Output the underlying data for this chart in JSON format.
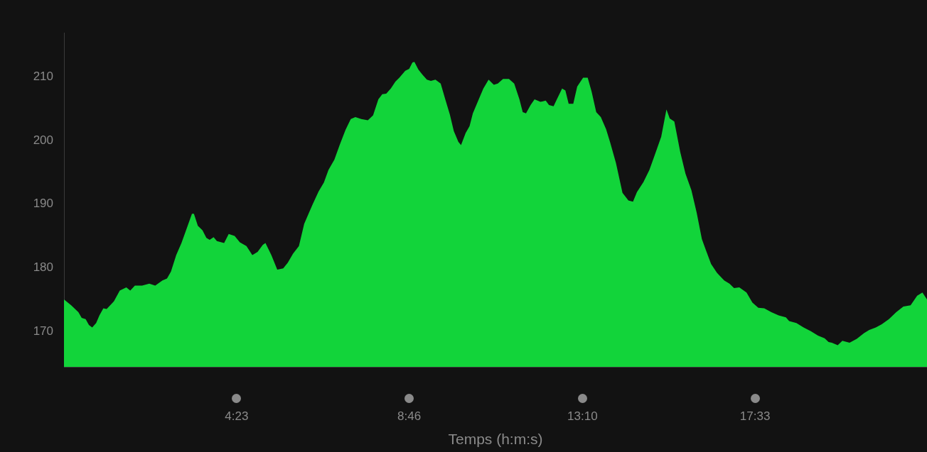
{
  "chart_data": {
    "type": "area",
    "xlabel": "Temps (h:m:s)",
    "xlim": [
      0,
      1315
    ],
    "ylim": [
      164.4,
      217
    ],
    "xticks": [
      {
        "value": 263,
        "label": "4:23"
      },
      {
        "value": 526,
        "label": "8:46"
      },
      {
        "value": 790,
        "label": "13:10"
      },
      {
        "value": 1053,
        "label": "17:33"
      }
    ],
    "yticks": [
      170,
      180,
      190,
      200,
      210
    ],
    "grid": false,
    "legend": false,
    "series": [
      {
        "color": "#12d43a",
        "x": [
          0,
          11,
          22,
          27,
          33,
          38,
          43,
          49,
          54,
          60,
          65,
          76,
          85,
          95,
          101,
          108,
          119,
          130,
          139,
          150,
          157,
          163,
          171,
          179,
          186,
          195,
          198,
          204,
          211,
          217,
          222,
          228,
          233,
          244,
          251,
          260,
          268,
          278,
          287,
          295,
          303,
          307,
          316,
          325,
          334,
          341,
          349,
          358,
          366,
          371,
          379,
          388,
          396,
          403,
          412,
          420,
          429,
          437,
          444,
          453,
          463,
          471,
          479,
          485,
          491,
          498,
          505,
          511,
          520,
          526,
          531,
          534,
          540,
          546,
          553,
          559,
          566,
          574,
          581,
          588,
          594,
          601,
          605,
          612,
          618,
          623,
          632,
          639,
          647,
          655,
          661,
          669,
          678,
          686,
          694,
          699,
          704,
          711,
          717,
          726,
          734,
          739,
          746,
          751,
          759,
          764,
          769,
          776,
          782,
          791,
          798,
          804,
          811,
          818,
          826,
          832,
          841,
          851,
          860,
          867,
          873,
          883,
          892,
          899,
          910,
          918,
          923,
          930,
          939,
          947,
          956,
          964,
          972,
          978,
          986,
          995,
          1006,
          1014,
          1021,
          1029,
          1040,
          1049,
          1058,
          1067,
          1078,
          1089,
          1100,
          1105,
          1116,
          1127,
          1138,
          1149,
          1159,
          1165,
          1170,
          1179,
          1186,
          1197,
          1208,
          1219,
          1227,
          1237,
          1246,
          1257,
          1268,
          1279,
          1290,
          1300,
          1308,
          1315
        ],
        "values": [
          175.0,
          174.1,
          173.0,
          172.1,
          171.9,
          171.0,
          170.6,
          171.3,
          172.5,
          173.6,
          173.5,
          174.7,
          176.4,
          176.9,
          176.4,
          177.2,
          177.2,
          177.5,
          177.2,
          178.0,
          178.3,
          179.4,
          182.0,
          183.9,
          185.9,
          188.5,
          188.5,
          186.6,
          185.9,
          184.7,
          184.4,
          184.8,
          184.2,
          183.9,
          185.3,
          185.0,
          184.0,
          183.4,
          182.0,
          182.5,
          183.6,
          183.9,
          182.0,
          179.7,
          179.9,
          180.8,
          182.2,
          183.4,
          186.9,
          188.1,
          190.0,
          192.0,
          193.4,
          195.4,
          197.0,
          199.3,
          201.7,
          203.4,
          203.7,
          203.4,
          203.2,
          204.0,
          206.5,
          207.3,
          207.4,
          208.2,
          209.3,
          209.9,
          211.0,
          211.3,
          212.3,
          212.4,
          211.2,
          210.4,
          209.6,
          209.4,
          209.6,
          209.0,
          206.5,
          204.1,
          201.5,
          199.8,
          199.3,
          201.2,
          202.3,
          204.3,
          206.5,
          208.2,
          209.6,
          208.8,
          209.0,
          209.7,
          209.7,
          209.0,
          206.5,
          204.5,
          204.3,
          205.6,
          206.5,
          206.1,
          206.3,
          205.6,
          205.4,
          206.5,
          208.2,
          207.9,
          205.8,
          205.8,
          208.5,
          209.9,
          209.9,
          207.7,
          204.5,
          203.7,
          201.8,
          199.8,
          196.5,
          191.8,
          190.6,
          190.4,
          191.9,
          193.5,
          195.4,
          197.4,
          200.6,
          204.9,
          203.5,
          203.0,
          198.2,
          194.8,
          192.2,
          188.7,
          184.5,
          182.8,
          180.6,
          179.2,
          178.0,
          177.5,
          176.8,
          176.9,
          176.1,
          174.5,
          173.7,
          173.6,
          173.0,
          172.5,
          172.2,
          171.6,
          171.3,
          170.6,
          170.0,
          169.3,
          168.9,
          168.3,
          168.2,
          167.8,
          168.5,
          168.2,
          168.8,
          169.7,
          170.2,
          170.6,
          171.1,
          171.9,
          173.0,
          173.9,
          174.1,
          175.6,
          176.1,
          175.0
        ]
      }
    ]
  }
}
